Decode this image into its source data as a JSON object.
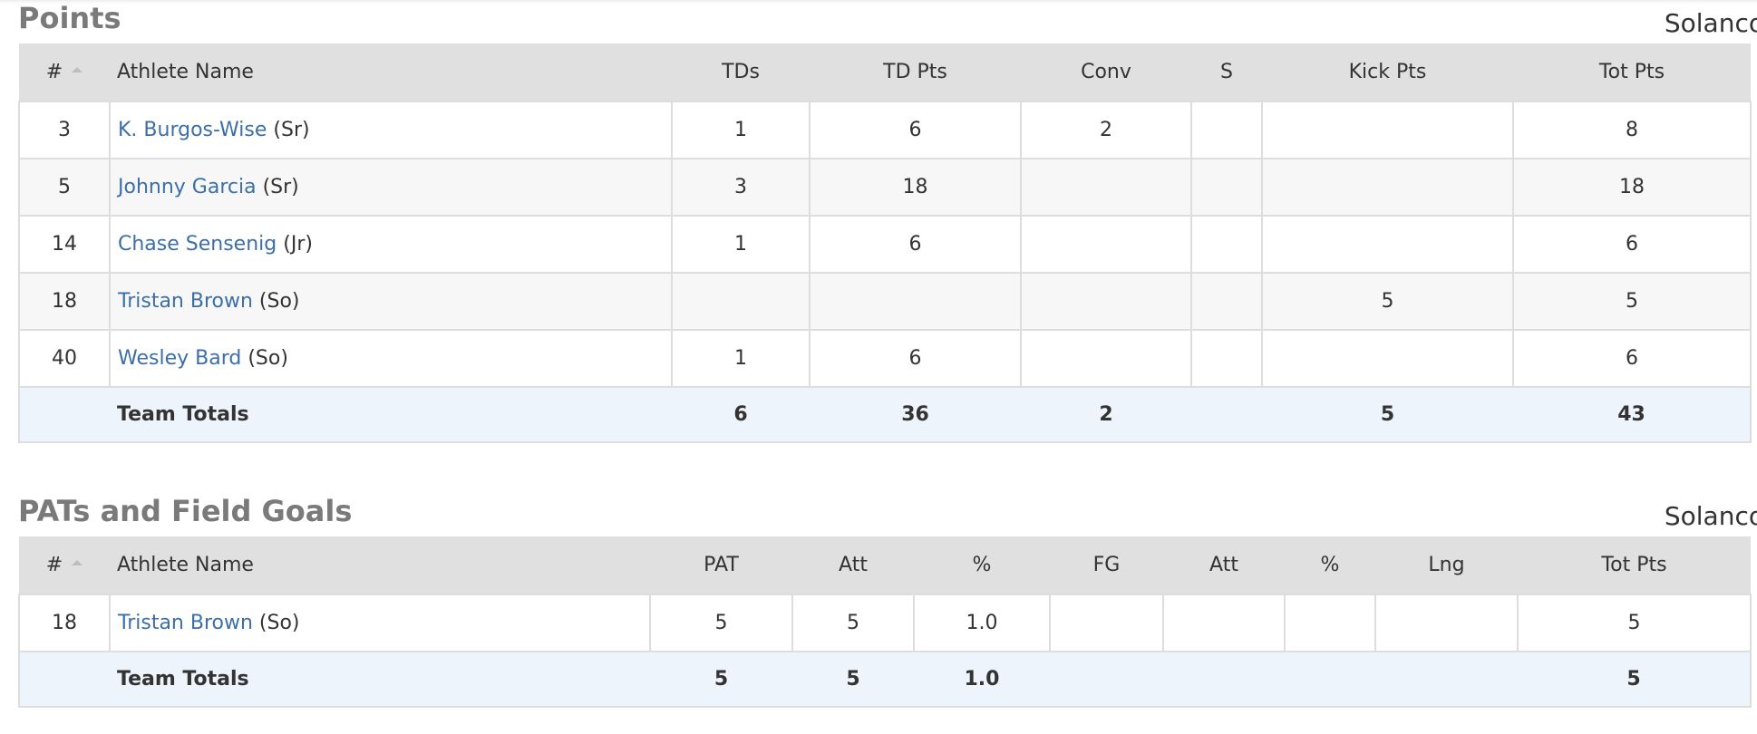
{
  "sections": {
    "points": {
      "title": "Points",
      "team": "Solanco",
      "headers": {
        "num": "#",
        "name": "Athlete Name",
        "tds": "TDs",
        "td_pts": "TD Pts",
        "conv": "Conv",
        "s": "S",
        "kick_pts": "Kick Pts",
        "tot_pts": "Tot Pts"
      },
      "rows": [
        {
          "num": "3",
          "name": "K. Burgos-Wise",
          "class": "(Sr)",
          "tds": "1",
          "td_pts": "6",
          "conv": "2",
          "s": "",
          "kick_pts": "",
          "tot_pts": "8"
        },
        {
          "num": "5",
          "name": "Johnny Garcia",
          "class": "(Sr)",
          "tds": "3",
          "td_pts": "18",
          "conv": "",
          "s": "",
          "kick_pts": "",
          "tot_pts": "18"
        },
        {
          "num": "14",
          "name": "Chase Sensenig",
          "class": "(Jr)",
          "tds": "1",
          "td_pts": "6",
          "conv": "",
          "s": "",
          "kick_pts": "",
          "tot_pts": "6"
        },
        {
          "num": "18",
          "name": "Tristan Brown",
          "class": "(So)",
          "tds": "",
          "td_pts": "",
          "conv": "",
          "s": "",
          "kick_pts": "5",
          "tot_pts": "5"
        },
        {
          "num": "40",
          "name": "Wesley Bard",
          "class": "(So)",
          "tds": "1",
          "td_pts": "6",
          "conv": "",
          "s": "",
          "kick_pts": "",
          "tot_pts": "6"
        }
      ],
      "totals": {
        "label": "Team Totals",
        "tds": "6",
        "td_pts": "36",
        "conv": "2",
        "s": "",
        "kick_pts": "5",
        "tot_pts": "43"
      }
    },
    "pats": {
      "title": "PATs and Field Goals",
      "team": "Solanco",
      "headers": {
        "num": "#",
        "name": "Athlete Name",
        "pat": "PAT",
        "pat_att": "Att",
        "pat_pct": "%",
        "fg": "FG",
        "fg_att": "Att",
        "fg_pct": "%",
        "lng": "Lng",
        "tot_pts": "Tot Pts"
      },
      "rows": [
        {
          "num": "18",
          "name": "Tristan Brown",
          "class": "(So)",
          "pat": "5",
          "pat_att": "5",
          "pat_pct": "1.0",
          "fg": "",
          "fg_att": "",
          "fg_pct": "",
          "lng": "",
          "tot_pts": "5"
        }
      ],
      "totals": {
        "label": "Team Totals",
        "pat": "5",
        "pat_att": "5",
        "pat_pct": "1.0",
        "fg": "",
        "fg_att": "",
        "fg_pct": "",
        "lng": "",
        "tot_pts": "5"
      }
    }
  },
  "colors": {
    "link": "#3c6fa8",
    "header_bg": "#e0e0e0",
    "totals_bg": "#eef4fb",
    "title": "#7a7a7a"
  }
}
